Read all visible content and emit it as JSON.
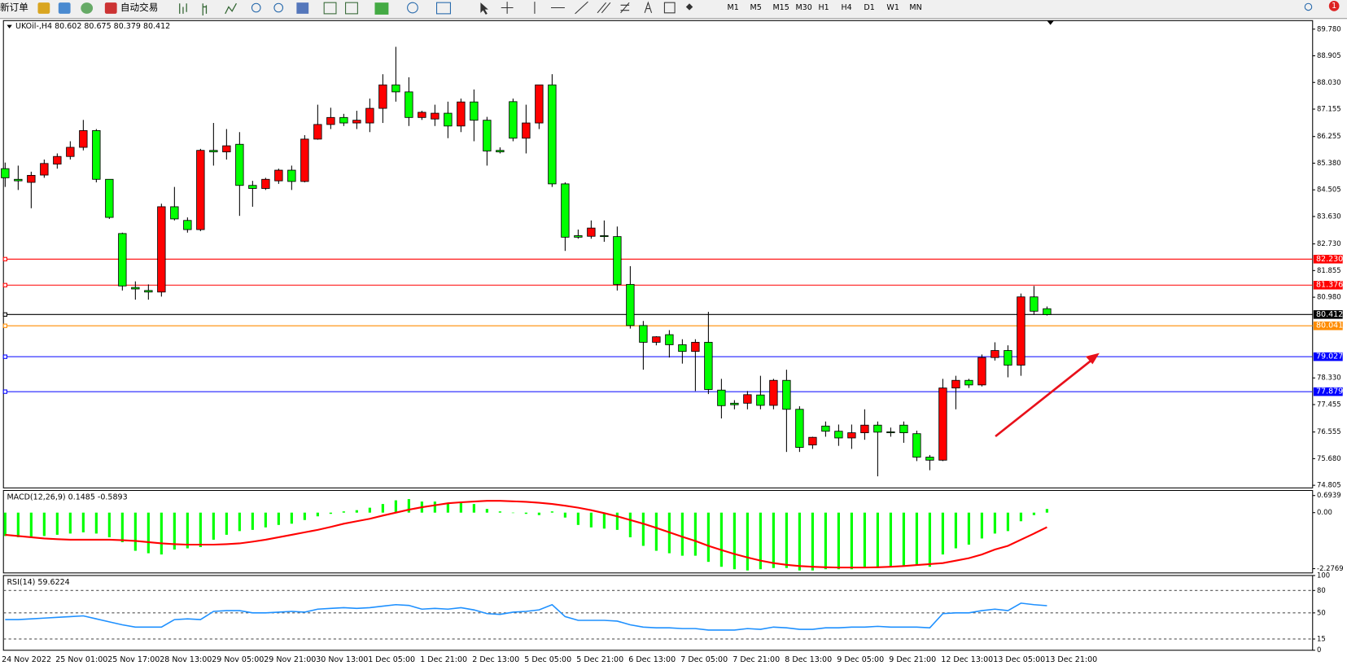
{
  "toolbar": {
    "items": [
      "新订单",
      "自动交易"
    ],
    "timeframes": [
      "M1",
      "M5",
      "M15",
      "M30",
      "H1",
      "H4",
      "D1",
      "W1",
      "MN"
    ],
    "badge": "1"
  },
  "chart_data": [
    {
      "type": "candlestick",
      "title": "UKOil-,H4 80.602 80.675 80.379 80.412",
      "x": [
        "24 Nov 2022",
        null,
        null,
        null,
        "25 Nov 01:00",
        null,
        null,
        null,
        "25 Nov 17:00",
        null,
        null,
        null,
        "28 Nov 13:00",
        null,
        null,
        null,
        "29 Nov 05:00",
        null,
        null,
        null,
        "29 Nov 21:00",
        null,
        null,
        null,
        "30 Nov 13:00",
        null,
        null,
        null,
        "1 Dec 05:00",
        null,
        null,
        null,
        "1 Dec 21:00",
        null,
        null,
        null,
        "2 Dec 13:00",
        null,
        null,
        null,
        "5 Dec 05:00",
        null,
        null,
        null,
        "5 Dec 21:00",
        null,
        null,
        null,
        "6 Dec 13:00",
        null,
        null,
        null,
        "7 Dec 05:00",
        null,
        null,
        null,
        "7 Dec 21:00",
        null,
        null,
        null,
        "8 Dec 13:00",
        null,
        null,
        null,
        "9 Dec 05:00",
        null,
        null,
        null,
        "9 Dec 21:00",
        null,
        null,
        null,
        "12 Dec 13:00",
        null,
        null,
        null,
        "13 Dec 05:00",
        null,
        null,
        null,
        "13 Dec 21:00"
      ],
      "open": [
        85.2,
        84.85,
        84.75,
        84.99,
        85.35,
        85.6,
        85.9,
        86.45,
        84.85,
        83.07,
        81.3,
        81.2,
        81.15,
        83.95,
        83.5,
        83.2,
        85.8,
        85.75,
        86.0,
        84.65,
        84.55,
        84.8,
        85.15,
        84.78,
        86.17,
        86.65,
        86.88,
        86.7,
        86.7,
        87.18,
        87.95,
        87.72,
        86.88,
        86.83,
        87.02,
        86.6,
        87.39,
        86.79,
        85.8,
        87.4,
        86.2,
        86.7,
        87.95,
        84.7,
        83.0,
        82.98,
        83.0,
        82.97,
        81.4,
        80.05,
        79.5,
        79.75,
        79.42,
        79.2,
        79.5,
        77.93,
        77.5,
        77.5,
        77.77,
        77.43,
        78.25,
        77.3,
        76.13,
        76.75,
        76.58,
        76.36,
        76.53,
        76.78,
        76.56,
        76.78,
        76.5,
        75.73,
        75.63,
        78.0,
        78.25,
        78.1,
        79.0,
        79.23,
        78.75,
        80.99,
        80.602
      ],
      "high": [
        85.4,
        85.3,
        85.1,
        85.5,
        85.7,
        86.1,
        86.8,
        86.5,
        84.85,
        83.1,
        81.5,
        81.4,
        84.05,
        84.6,
        83.6,
        85.85,
        86.7,
        86.5,
        86.4,
        84.8,
        84.9,
        85.2,
        85.3,
        86.3,
        87.3,
        87.2,
        87.0,
        87.1,
        87.5,
        88.3,
        89.2,
        88.2,
        87.1,
        87.3,
        87.4,
        87.5,
        87.8,
        86.9,
        85.9,
        87.5,
        87.3,
        87.95,
        88.3,
        84.75,
        83.2,
        83.5,
        83.5,
        83.3,
        82.0,
        80.2,
        79.7,
        79.9,
        79.6,
        79.6,
        80.5,
        78.3,
        77.6,
        77.9,
        78.4,
        78.3,
        78.6,
        77.4,
        76.4,
        76.9,
        76.8,
        76.8,
        77.3,
        76.9,
        76.7,
        76.9,
        76.6,
        75.8,
        78.3,
        78.4,
        78.3,
        79.1,
        79.5,
        79.4,
        81.1,
        81.35,
        80.675
      ],
      "low": [
        84.6,
        84.5,
        83.9,
        84.9,
        85.2,
        85.5,
        85.8,
        84.75,
        83.55,
        81.2,
        80.9,
        80.9,
        81.0,
        83.5,
        83.1,
        83.15,
        85.3,
        85.5,
        83.65,
        83.95,
        84.5,
        84.7,
        84.5,
        84.75,
        86.15,
        86.5,
        86.6,
        86.5,
        86.4,
        86.7,
        87.4,
        86.6,
        86.8,
        86.6,
        86.2,
        86.4,
        86.1,
        85.3,
        85.7,
        86.1,
        85.7,
        86.5,
        84.6,
        82.5,
        82.9,
        82.9,
        82.8,
        81.2,
        79.95,
        78.6,
        79.4,
        79.0,
        78.8,
        77.9,
        77.8,
        77.0,
        77.3,
        77.3,
        77.3,
        77.3,
        75.9,
        75.9,
        76.0,
        76.4,
        76.1,
        76.0,
        76.3,
        75.1,
        76.4,
        76.2,
        75.6,
        75.3,
        75.6,
        77.3,
        78.0,
        78.05,
        78.9,
        78.35,
        78.4,
        80.4,
        80.379
      ],
      "close": [
        84.9,
        84.8,
        84.98,
        85.37,
        85.6,
        85.9,
        86.45,
        84.85,
        83.6,
        81.35,
        81.25,
        81.15,
        83.95,
        83.55,
        83.2,
        85.8,
        85.75,
        85.95,
        84.65,
        84.55,
        84.85,
        85.15,
        84.78,
        86.17,
        86.65,
        86.88,
        86.7,
        86.79,
        87.18,
        87.95,
        87.72,
        86.88,
        87.05,
        87.02,
        86.6,
        87.39,
        86.79,
        85.78,
        85.75,
        86.2,
        86.7,
        87.95,
        84.7,
        82.95,
        82.95,
        83.25,
        82.97,
        81.4,
        80.05,
        79.5,
        79.68,
        79.42,
        79.2,
        79.5,
        77.95,
        77.42,
        77.45,
        77.78,
        77.43,
        78.25,
        77.3,
        76.05,
        76.38,
        76.58,
        76.36,
        76.53,
        76.78,
        76.55,
        76.53,
        76.53,
        75.73,
        75.63,
        78.0,
        78.25,
        78.1,
        79.0,
        79.23,
        78.75,
        80.99,
        80.52,
        80.412
      ],
      "up_color": "#ff0000",
      "down_color": "#00ff00",
      "ylim": [
        74.72,
        90.06
      ],
      "yticks": [
        {
          "value": 89.78,
          "label": "89.780"
        },
        88.905,
        {
          "value": 88.03,
          "label": "88.030"
        },
        87.155,
        86.255,
        {
          "value": 85.38,
          "label": "85.380"
        },
        84.505,
        {
          "value": 83.63,
          "label": "83.630"
        },
        {
          "value": 82.73,
          "label": "82.730"
        },
        81.855,
        {
          "value": 80.98,
          "label": "80.980"
        },
        {
          "value": 78.33,
          "label": "78.330"
        },
        77.455,
        76.555,
        {
          "value": 75.68,
          "label": "75.680"
        },
        74.805
      ],
      "hlines": [
        {
          "value": 82.23,
          "label": "82.230",
          "color": "#ff0000"
        },
        {
          "value": 81.376,
          "color": "#ff0000"
        },
        {
          "value": 80.412,
          "color": "#000000"
        },
        {
          "value": 80.041,
          "color": "#ff8c00"
        },
        {
          "value": 79.027,
          "color": "#0000ff"
        },
        {
          "value": 77.879,
          "color": "#0000ff"
        }
      ]
    },
    {
      "type": "macd",
      "title": "MACD(12,26,9) 0.1485 -0.5893",
      "series": [
        {
          "style": "histogram",
          "color": "#00ff00",
          "values": [
            -0.95,
            -1.0,
            -1.0,
            -0.95,
            -0.9,
            -0.85,
            -0.8,
            -0.85,
            -1.0,
            -1.2,
            -1.55,
            -1.65,
            -1.7,
            -1.5,
            -1.45,
            -1.4,
            -1.1,
            -0.9,
            -0.75,
            -0.7,
            -0.6,
            -0.5,
            -0.45,
            -0.3,
            -0.15,
            -0.05,
            0.05,
            0.1,
            0.2,
            0.35,
            0.5,
            0.55,
            0.45,
            0.45,
            0.4,
            0.45,
            0.35,
            0.15,
            0.05,
            0.0,
            -0.05,
            -0.1,
            0.05,
            -0.2,
            -0.5,
            -0.6,
            -0.65,
            -0.7,
            -1.0,
            -1.35,
            -1.55,
            -1.65,
            -1.75,
            -1.75,
            -2.0,
            -2.2,
            -2.3,
            -2.35,
            -2.3,
            -2.25,
            -2.25,
            -2.35,
            -2.35,
            -2.3,
            -2.3,
            -2.3,
            -2.25,
            -2.25,
            -2.2,
            -2.15,
            -2.15,
            -2.2,
            -1.7,
            -1.45,
            -1.3,
            -1.05,
            -0.85,
            -0.75,
            -0.35,
            -0.1,
            0.1485
          ]
        },
        {
          "style": "line",
          "color": "#ff0000",
          "values": [
            -0.9,
            -0.95,
            -1.0,
            -1.05,
            -1.08,
            -1.1,
            -1.1,
            -1.1,
            -1.1,
            -1.12,
            -1.15,
            -1.2,
            -1.25,
            -1.28,
            -1.3,
            -1.3,
            -1.3,
            -1.28,
            -1.25,
            -1.18,
            -1.1,
            -1.0,
            -0.9,
            -0.8,
            -0.7,
            -0.58,
            -0.45,
            -0.35,
            -0.25,
            -0.12,
            0.0,
            0.12,
            0.22,
            0.3,
            0.38,
            0.42,
            0.45,
            0.48,
            0.48,
            0.46,
            0.44,
            0.4,
            0.35,
            0.28,
            0.2,
            0.1,
            -0.02,
            -0.15,
            -0.3,
            -0.45,
            -0.62,
            -0.8,
            -0.98,
            -1.15,
            -1.35,
            -1.52,
            -1.68,
            -1.82,
            -1.95,
            -2.05,
            -2.12,
            -2.17,
            -2.2,
            -2.22,
            -2.23,
            -2.23,
            -2.23,
            -2.22,
            -2.2,
            -2.17,
            -2.13,
            -2.09,
            -2.05,
            -1.95,
            -1.85,
            -1.7,
            -1.5,
            -1.35,
            -1.1,
            -0.85,
            -0.5893
          ]
        }
      ],
      "ylim": [
        -2.45,
        0.9
      ],
      "yticks": [
        0.6939,
        {
          "value": 0,
          "label": "0.00"
        },
        -2.2769
      ]
    },
    {
      "type": "line",
      "title": "RSI(14) 59.6224",
      "series": [
        {
          "color": "#1e90ff",
          "values": [
            41,
            41,
            42,
            43,
            44,
            45,
            46,
            42,
            38,
            34,
            31,
            31,
            31,
            41,
            42,
            41,
            52,
            53,
            53,
            50,
            50,
            51,
            52,
            51,
            55,
            56,
            57,
            56,
            57,
            59,
            61,
            60,
            55,
            56,
            55,
            57,
            54,
            49,
            48,
            51,
            52,
            54,
            61,
            45,
            40,
            40,
            40,
            39,
            34,
            31,
            30,
            30,
            29,
            29,
            27,
            27,
            27,
            29,
            28,
            31,
            30,
            28,
            28,
            30,
            30,
            31,
            31,
            32,
            31,
            31,
            31,
            30,
            49,
            50,
            50,
            53,
            55,
            53,
            63,
            61,
            59.6224
          ]
        }
      ],
      "ylim": [
        0,
        100
      ],
      "yticks": [
        100,
        80,
        50,
        15,
        0
      ],
      "grid": true
    }
  ]
}
